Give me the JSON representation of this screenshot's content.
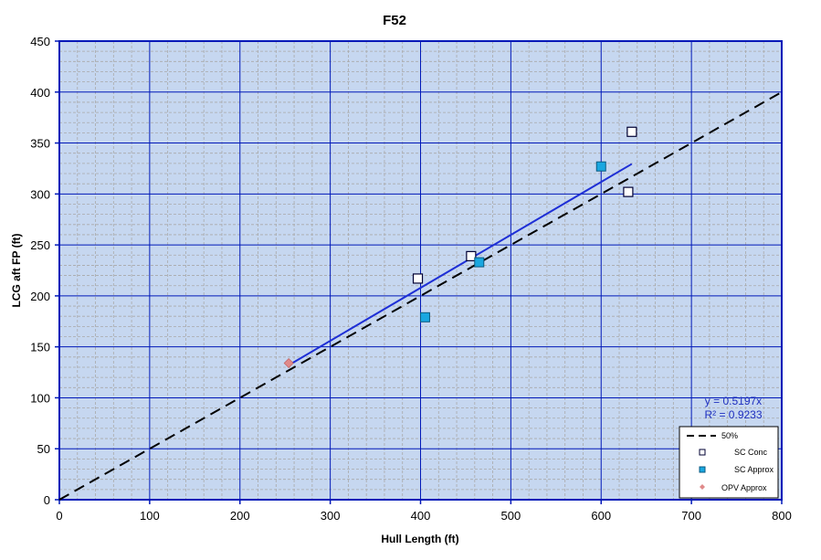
{
  "chart_data": {
    "type": "scatter",
    "title": "F52",
    "xlabel": "Hull Length (ft)",
    "ylabel": "LCG aft FP (ft)",
    "xlim": [
      0,
      800
    ],
    "ylim": [
      0,
      450
    ],
    "x_ticks": [
      0,
      100,
      200,
      300,
      400,
      500,
      600,
      700,
      800
    ],
    "y_ticks": [
      0,
      50,
      100,
      150,
      200,
      250,
      300,
      350,
      400,
      450
    ],
    "grid": true,
    "legend_position": "lower right",
    "series": [
      {
        "name": "50%",
        "kind": "line",
        "style": "dashed",
        "color": "#000000",
        "points": [
          [
            0,
            0
          ],
          [
            800,
            400
          ]
        ]
      },
      {
        "name": "SC Conc",
        "kind": "scatter",
        "marker": "square-open",
        "color": "#ffffff",
        "points": [
          [
            397,
            217
          ],
          [
            456,
            239
          ],
          [
            630,
            302
          ],
          [
            634,
            361
          ]
        ]
      },
      {
        "name": "SC Approx",
        "kind": "scatter",
        "marker": "square-filled",
        "color": "#1aa7e0",
        "points": [
          [
            405,
            179
          ],
          [
            465,
            233
          ],
          [
            600,
            327
          ]
        ]
      },
      {
        "name": "OPV Approx",
        "kind": "scatter",
        "marker": "diamond",
        "color": "#e08a8a",
        "points": [
          [
            254,
            134
          ]
        ]
      }
    ],
    "trendline": {
      "equation": "y = 0.5197x",
      "r2_label": "R² = 0.9233",
      "slope": 0.5197,
      "x_range": [
        254,
        634
      ],
      "color": "#1e2fd6"
    }
  },
  "labels": {
    "title": "F52",
    "xlabel": "Hull Length (ft)",
    "ylabel": "LCG aft FP (ft)",
    "eq": "y = 0.5197x",
    "r2": "R² = 0.9233",
    "legend": [
      "50%",
      "SC Conc",
      "SC Approx",
      "OPV Approx"
    ]
  }
}
